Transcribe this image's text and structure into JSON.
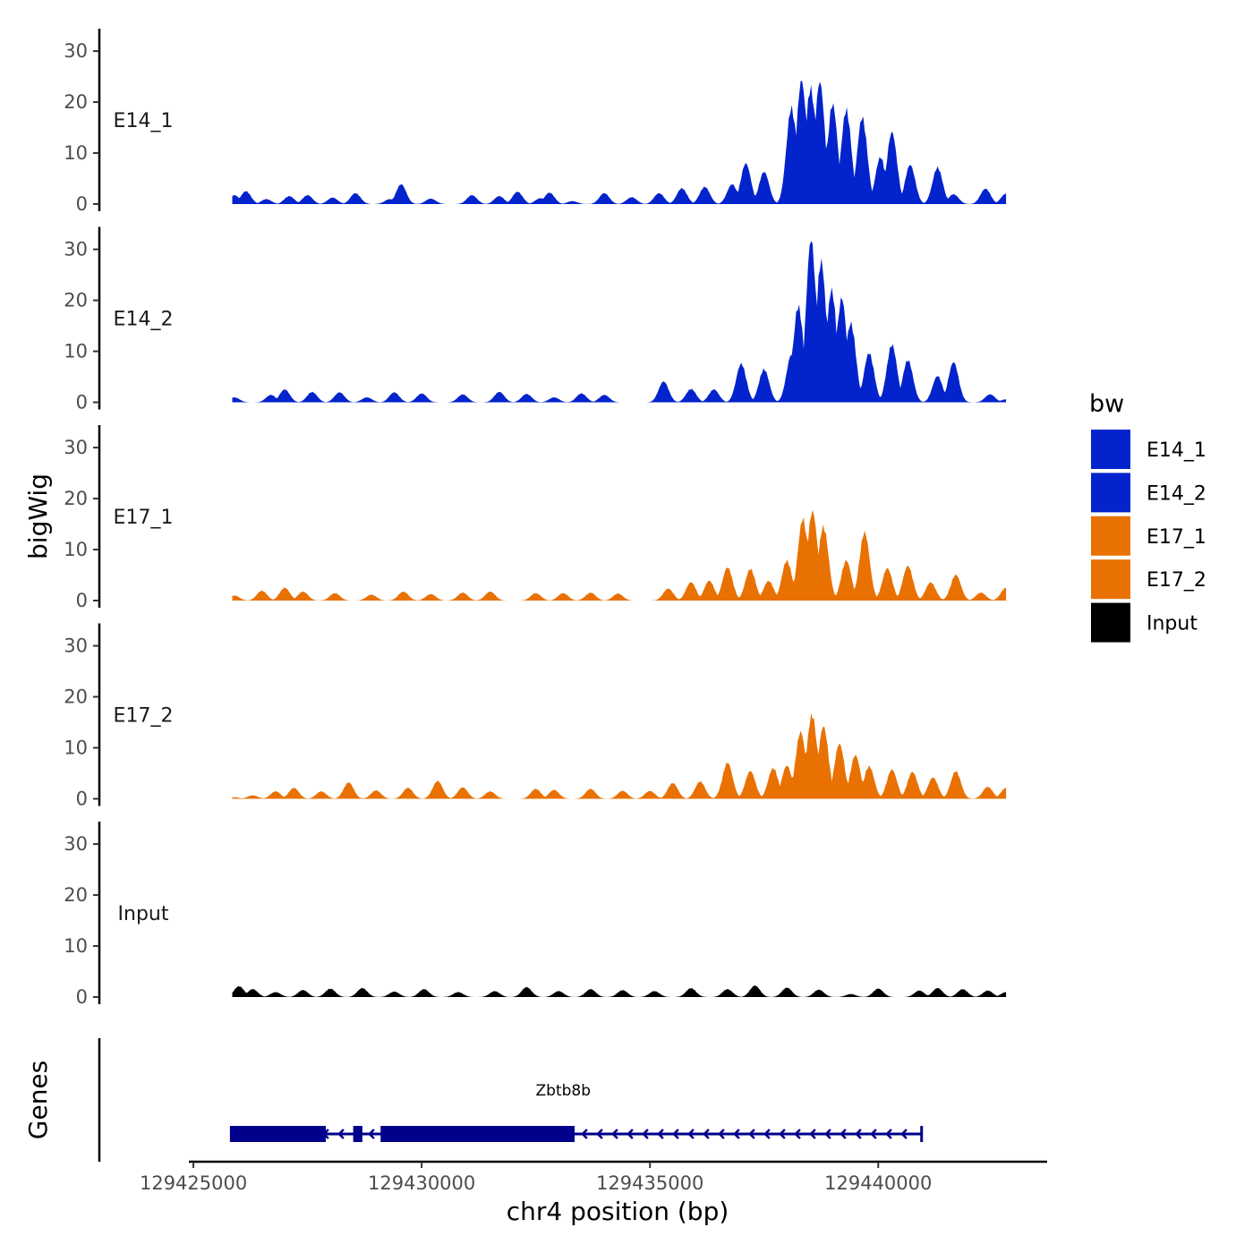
{
  "chart_data": {
    "type": "area",
    "title": "",
    "xlabel": "chr4 position (bp)",
    "ylabel": "bigWig",
    "genes_axis_label": "Genes",
    "xlim": [
      129424900,
      129443700
    ],
    "ylim": [
      0,
      33
    ],
    "x_ticks": [
      129425000,
      129430000,
      129435000,
      129440000
    ],
    "y_ticks": [
      0,
      10,
      20,
      30
    ],
    "region": [
      129425850,
      129442800
    ],
    "legend": {
      "title": "bw",
      "position": "right",
      "entries": [
        {
          "label": "E14_1",
          "color": "#0323CC"
        },
        {
          "label": "E14_2",
          "color": "#0323CC"
        },
        {
          "label": "E17_1",
          "color": "#E97102"
        },
        {
          "label": "E17_2",
          "color": "#E97102"
        },
        {
          "label": "Input",
          "color": "#000000"
        }
      ]
    },
    "tracks": [
      {
        "name": "E14_1",
        "color": "#0323CC",
        "peaks": [
          [
            129425900,
            1.8
          ],
          [
            129426150,
            2.6
          ],
          [
            129426600,
            1.0
          ],
          [
            129427100,
            1.6
          ],
          [
            129427500,
            1.8
          ],
          [
            129428050,
            1.3
          ],
          [
            129428550,
            2.2
          ],
          [
            129429300,
            1.0
          ],
          [
            129429550,
            4.0
          ],
          [
            129430200,
            1.1
          ],
          [
            129431100,
            1.8
          ],
          [
            129431700,
            1.6
          ],
          [
            129432100,
            2.5
          ],
          [
            129432600,
            1.2
          ],
          [
            129432800,
            2.3
          ],
          [
            129433300,
            0.6
          ],
          [
            129434000,
            2.2
          ],
          [
            129434600,
            1.4
          ],
          [
            129435200,
            2.2
          ],
          [
            129435700,
            3.2
          ],
          [
            129436200,
            3.5
          ],
          [
            129436800,
            4.0
          ],
          [
            129437100,
            8.2
          ],
          [
            129437500,
            6.5
          ],
          [
            129438100,
            19.5
          ],
          [
            129438320,
            24.9
          ],
          [
            129438520,
            23.5
          ],
          [
            129438720,
            24.6
          ],
          [
            129439000,
            20.2
          ],
          [
            129439300,
            19.1
          ],
          [
            129439650,
            17.5
          ],
          [
            129440050,
            9.5
          ],
          [
            129440300,
            14.5
          ],
          [
            129440700,
            7.9
          ],
          [
            129441300,
            7.4
          ],
          [
            129441650,
            2.0
          ],
          [
            129442350,
            3.1
          ],
          [
            129442800,
            2.1
          ]
        ]
      },
      {
        "name": "E14_2",
        "color": "#0323CC",
        "peaks": [
          [
            129425900,
            1.0
          ],
          [
            129426700,
            1.5
          ],
          [
            129427000,
            2.6
          ],
          [
            129427600,
            2.1
          ],
          [
            129428200,
            2.0
          ],
          [
            129428800,
            1.0
          ],
          [
            129429400,
            2.0
          ],
          [
            129430000,
            1.8
          ],
          [
            129430900,
            1.6
          ],
          [
            129431700,
            2.1
          ],
          [
            129432300,
            1.7
          ],
          [
            129432900,
            1.0
          ],
          [
            129433500,
            1.8
          ],
          [
            129434000,
            1.5
          ],
          [
            129435300,
            4.2
          ],
          [
            129435900,
            2.7
          ],
          [
            129436400,
            2.6
          ],
          [
            129437000,
            7.8
          ],
          [
            129437500,
            6.7
          ],
          [
            129438100,
            9.6
          ],
          [
            129438250,
            19.5
          ],
          [
            129438530,
            32.8
          ],
          [
            129438750,
            28.5
          ],
          [
            129438980,
            22.7
          ],
          [
            129439200,
            21.0
          ],
          [
            129439400,
            16.0
          ],
          [
            129439800,
            10.0
          ],
          [
            129440300,
            11.7
          ],
          [
            129440650,
            8.6
          ],
          [
            129441300,
            5.3
          ],
          [
            129441650,
            8.1
          ],
          [
            129442450,
            1.6
          ],
          [
            129442800,
            0.6
          ]
        ]
      },
      {
        "name": "E17_1",
        "color": "#E97102",
        "peaks": [
          [
            129425900,
            1.0
          ],
          [
            129426500,
            2.0
          ],
          [
            129427000,
            2.6
          ],
          [
            129427400,
            1.8
          ],
          [
            129428100,
            1.5
          ],
          [
            129428900,
            1.2
          ],
          [
            129429600,
            1.8
          ],
          [
            129430200,
            1.3
          ],
          [
            129430900,
            1.6
          ],
          [
            129431500,
            1.8
          ],
          [
            129432500,
            1.5
          ],
          [
            129433100,
            1.5
          ],
          [
            129433700,
            1.6
          ],
          [
            129434300,
            1.4
          ],
          [
            129435400,
            2.4
          ],
          [
            129435900,
            3.7
          ],
          [
            129436300,
            4.0
          ],
          [
            129436700,
            6.7
          ],
          [
            129437200,
            6.4
          ],
          [
            129437600,
            4.0
          ],
          [
            129438000,
            8.1
          ],
          [
            129438350,
            16.5
          ],
          [
            129438560,
            18.0
          ],
          [
            129438800,
            15.0
          ],
          [
            129439300,
            8.1
          ],
          [
            129439700,
            13.8
          ],
          [
            129440200,
            6.5
          ],
          [
            129440650,
            7.0
          ],
          [
            129441150,
            3.7
          ],
          [
            129441700,
            5.2
          ],
          [
            129442250,
            1.6
          ],
          [
            129442800,
            2.6
          ]
        ]
      },
      {
        "name": "E17_2",
        "color": "#E97102",
        "peaks": [
          [
            129425900,
            0.3
          ],
          [
            129426300,
            0.7
          ],
          [
            129426800,
            1.5
          ],
          [
            129427200,
            2.2
          ],
          [
            129427800,
            1.5
          ],
          [
            129428400,
            3.3
          ],
          [
            129429000,
            1.7
          ],
          [
            129429700,
            2.2
          ],
          [
            129430350,
            3.6
          ],
          [
            129430900,
            2.3
          ],
          [
            129431500,
            1.5
          ],
          [
            129432500,
            2.0
          ],
          [
            129432900,
            1.8
          ],
          [
            129433700,
            2.0
          ],
          [
            129434400,
            1.6
          ],
          [
            129435000,
            1.6
          ],
          [
            129435500,
            3.2
          ],
          [
            129436100,
            3.5
          ],
          [
            129436700,
            7.3
          ],
          [
            129437200,
            5.6
          ],
          [
            129437700,
            6.2
          ],
          [
            129438000,
            6.7
          ],
          [
            129438300,
            13.5
          ],
          [
            129438550,
            17.1
          ],
          [
            129438800,
            14.6
          ],
          [
            129439150,
            11.1
          ],
          [
            129439500,
            8.8
          ],
          [
            129439800,
            6.6
          ],
          [
            129440300,
            5.9
          ],
          [
            129440750,
            5.4
          ],
          [
            129441200,
            4.3
          ],
          [
            129441700,
            5.6
          ],
          [
            129442400,
            2.4
          ],
          [
            129442800,
            2.2
          ]
        ]
      },
      {
        "name": "Input",
        "color": "#000000",
        "peaks": [
          [
            129426000,
            2.2
          ],
          [
            129426300,
            1.6
          ],
          [
            129426800,
            1.0
          ],
          [
            129427400,
            1.4
          ],
          [
            129428000,
            1.7
          ],
          [
            129428700,
            1.8
          ],
          [
            129429400,
            1.1
          ],
          [
            129430050,
            1.6
          ],
          [
            129430800,
            1.0
          ],
          [
            129431600,
            1.2
          ],
          [
            129432300,
            2.0
          ],
          [
            129433000,
            1.2
          ],
          [
            129433700,
            1.6
          ],
          [
            129434400,
            1.4
          ],
          [
            129435100,
            1.2
          ],
          [
            129435900,
            1.8
          ],
          [
            129436700,
            1.6
          ],
          [
            129437300,
            2.3
          ],
          [
            129438000,
            1.9
          ],
          [
            129438700,
            1.5
          ],
          [
            129439400,
            0.6
          ],
          [
            129440000,
            1.7
          ],
          [
            129440900,
            1.3
          ],
          [
            129441300,
            1.8
          ],
          [
            129441850,
            1.6
          ],
          [
            129442400,
            1.3
          ],
          [
            129442800,
            1.0
          ]
        ]
      }
    ],
    "gene": {
      "name": "Zbtb8b",
      "strand": "-",
      "start": 129425800,
      "end": 129440950,
      "exons": [
        [
          129425800,
          129427900
        ],
        [
          129428500,
          129428700
        ],
        [
          129429100,
          129433350
        ]
      ]
    }
  }
}
